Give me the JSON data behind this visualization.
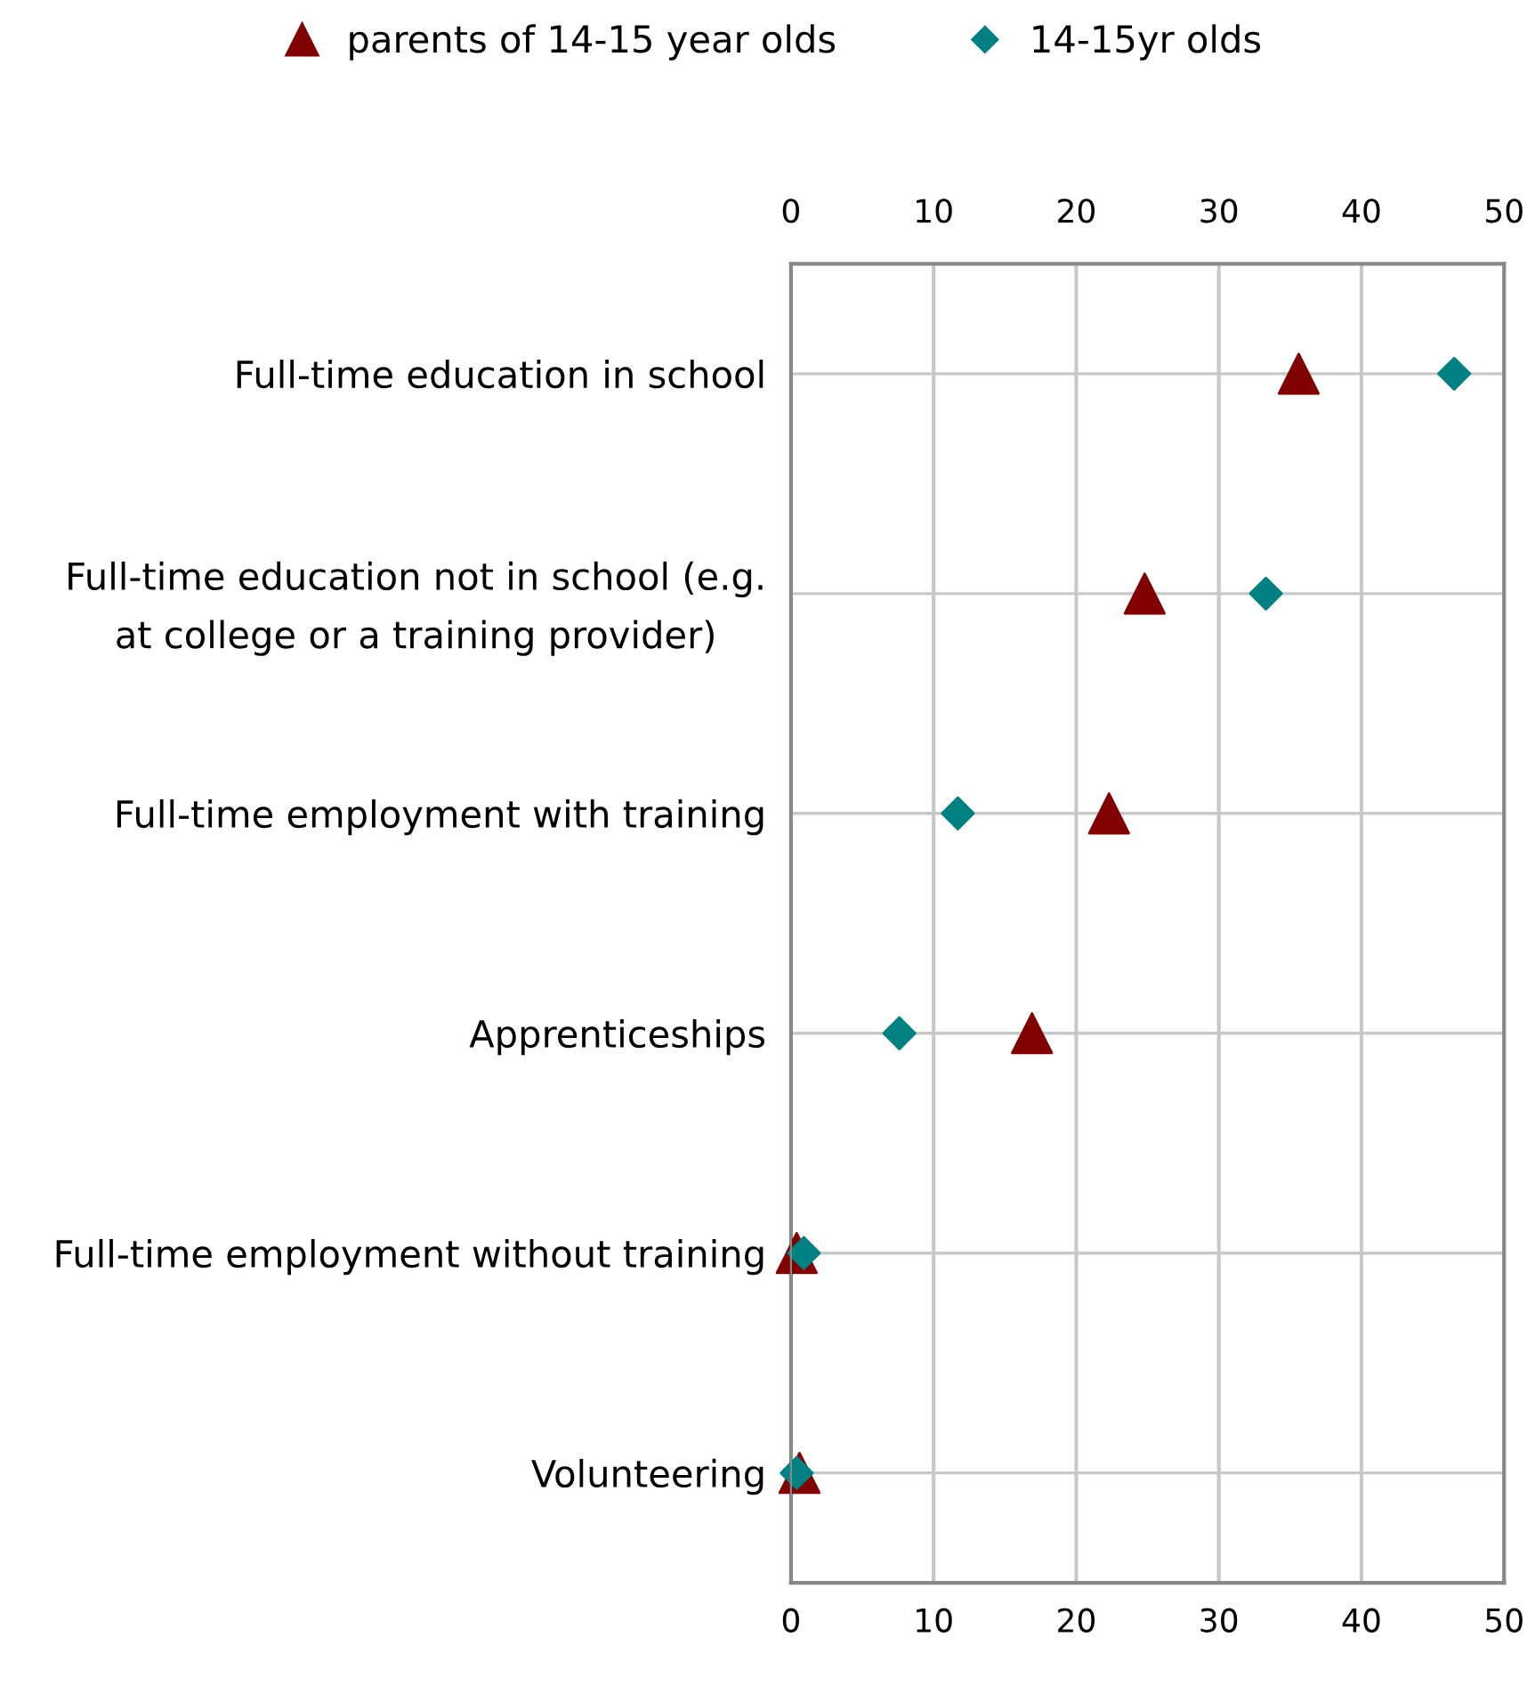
{
  "chart_data": {
    "type": "scatter",
    "orientation": "horizontal",
    "categories": [
      "Full-time education in school",
      "Full-time education not in school (e.g.\nat college or a training provider)",
      "Full-time employment with training",
      "Apprenticeships",
      "Full-time employment without training",
      "Volunteering"
    ],
    "series": [
      {
        "name": "parents of 14-15 year olds",
        "color": "#800000",
        "marker": "triangle",
        "values": [
          35.6,
          24.8,
          22.3,
          16.9,
          0.4,
          0.6
        ]
      },
      {
        "name": "14-15yr olds",
        "color": "#008080",
        "marker": "diamond",
        "values": [
          46.5,
          33.3,
          11.7,
          7.6,
          0.9,
          0.4
        ]
      }
    ],
    "xlim": [
      0,
      50
    ],
    "xticks": [
      0,
      10,
      20,
      30,
      40,
      50
    ],
    "x2lim": [
      0,
      50
    ],
    "x2ticks": [
      0,
      10,
      20,
      30,
      40,
      50
    ],
    "grid": true,
    "legend": "top"
  }
}
